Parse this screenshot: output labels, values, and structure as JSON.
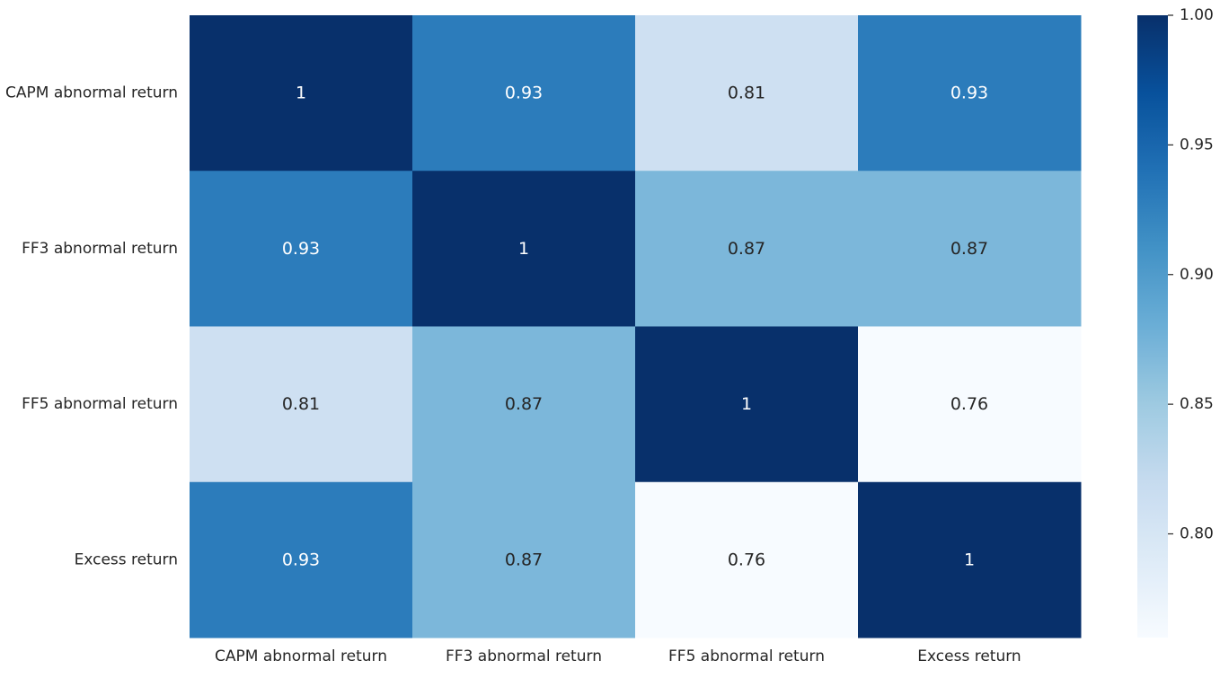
{
  "chart_data": {
    "type": "heatmap",
    "title": "",
    "xlabel": "",
    "ylabel": "",
    "x_categories": [
      "CAPM abnormal return",
      "FF3 abnormal return",
      "FF5 abnormal return",
      "Excess return"
    ],
    "y_categories": [
      "CAPM abnormal return",
      "FF3 abnormal return",
      "FF5 abnormal return",
      "Excess return"
    ],
    "values": [
      [
        1,
        0.93,
        0.81,
        0.93
      ],
      [
        0.93,
        1,
        0.87,
        0.87
      ],
      [
        0.81,
        0.87,
        1,
        0.76
      ],
      [
        0.93,
        0.87,
        0.76,
        1
      ]
    ],
    "cell_labels": [
      [
        "1",
        "0.93",
        "0.81",
        "0.93"
      ],
      [
        "0.93",
        "1",
        "0.87",
        "0.87"
      ],
      [
        "0.81",
        "0.87",
        "1",
        "0.76"
      ],
      [
        "0.93",
        "0.87",
        "0.76",
        "1"
      ]
    ],
    "colorbar": {
      "vmin": 0.76,
      "vmax": 1.0,
      "ticks": [
        0.8,
        0.85,
        0.9,
        0.95,
        1.0
      ],
      "tick_labels": [
        "0.80",
        "0.85",
        "0.90",
        "0.95",
        "1.00"
      ],
      "colormap": "Blues",
      "colors": [
        "#f7fbff",
        "#deebf7",
        "#c6dbef",
        "#9ecae1",
        "#6baed6",
        "#4292c6",
        "#2171b5",
        "#08519c",
        "#08306b"
      ]
    },
    "grid": false,
    "legend": "colorbar-right"
  }
}
